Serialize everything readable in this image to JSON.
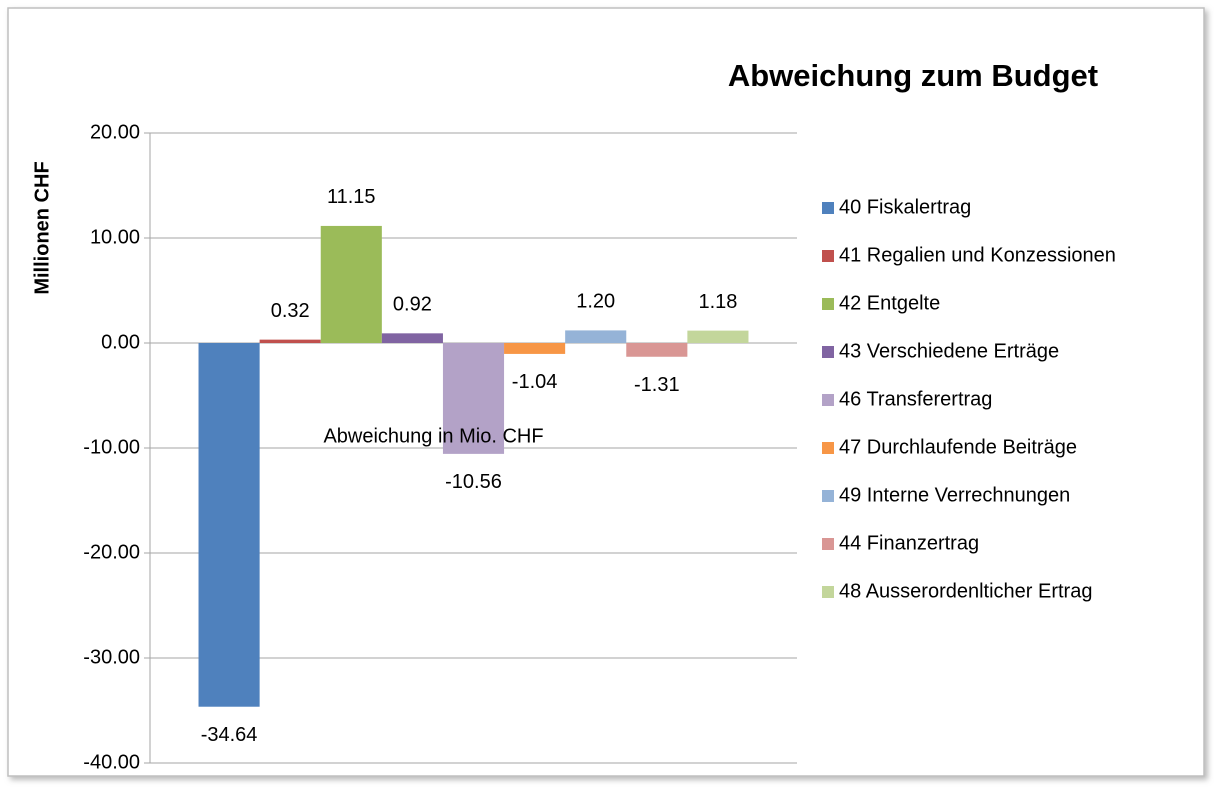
{
  "chart_data": {
    "type": "bar",
    "title": "Abweichung zum Budget",
    "y_label": "Millionen CHF",
    "categories": [
      "Abweichung in Mio. CHF"
    ],
    "series": [
      {
        "name": "40 Fiskalertrag",
        "color": "#4f81bd",
        "values": [
          -34.64
        ],
        "value_labels": [
          "-34.64"
        ]
      },
      {
        "name": "41 Regalien und Konzessionen",
        "color": "#c0504d",
        "values": [
          0.32
        ],
        "value_labels": [
          "0.32"
        ]
      },
      {
        "name": "42 Entgelte",
        "color": "#9bbb59",
        "values": [
          11.15
        ],
        "value_labels": [
          "11.15"
        ]
      },
      {
        "name": "43 Verschiedene Erträge",
        "color": "#8064a2",
        "values": [
          0.92
        ],
        "value_labels": [
          "0.92"
        ]
      },
      {
        "name": "46 Transferertrag",
        "color": "#b3a2c7",
        "values": [
          -10.56
        ],
        "value_labels": [
          "-10.56"
        ]
      },
      {
        "name": "47 Durchlaufende Beiträge",
        "color": "#f79646",
        "values": [
          -1.04
        ],
        "value_labels": [
          "-1.04"
        ]
      },
      {
        "name": "49 Interne Verrechnungen",
        "color": "#95b3d7",
        "values": [
          1.2
        ],
        "value_labels": [
          "1.20"
        ]
      },
      {
        "name": "44 Finanzertrag",
        "color": "#d99694",
        "values": [
          -1.31
        ],
        "value_labels": [
          "-1.31"
        ]
      },
      {
        "name": "48 Ausserordenlticher Ertrag",
        "color": "#c3d69b",
        "values": [
          1.18
        ],
        "value_labels": [
          "1.18"
        ]
      }
    ],
    "ylim": [
      -40,
      20
    ],
    "yticks": [
      {
        "value": -40,
        "label": "-40.00"
      },
      {
        "value": -30,
        "label": "-30.00"
      },
      {
        "value": -20,
        "label": "-20.00"
      },
      {
        "value": -10,
        "label": "-10.00"
      },
      {
        "value": 0,
        "label": "0.00"
      },
      {
        "value": 10,
        "label": "10.00"
      },
      {
        "value": 20,
        "label": "20.00"
      }
    ],
    "grid": true,
    "legend": "right"
  }
}
